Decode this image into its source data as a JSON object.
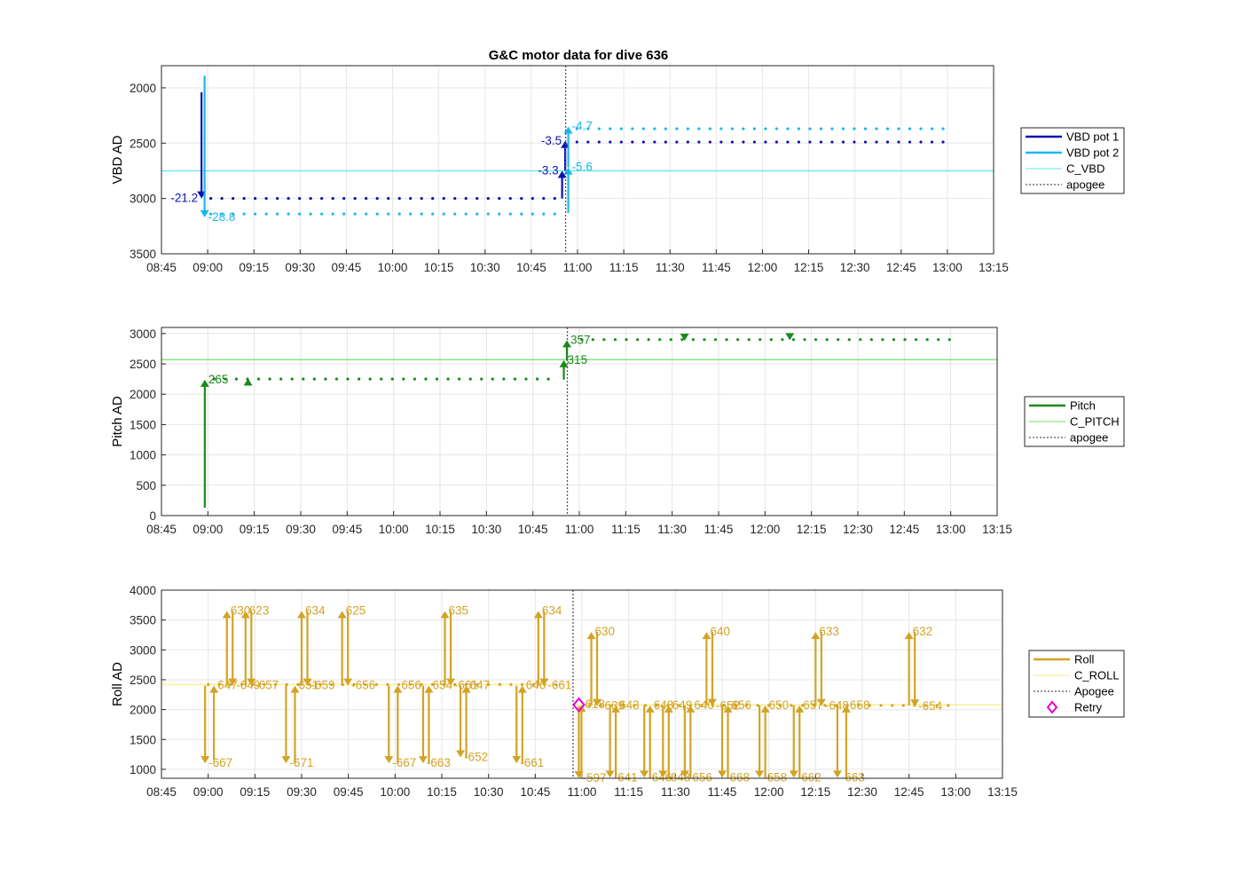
{
  "figure_title": "G&C motor data for dive 636",
  "colors": {
    "vbd1": "#0c12b0",
    "vbd2": "#1ab8ea",
    "c_vbd": "#62e4ea",
    "pitch": "#1b8a1b",
    "c_pitch": "#6de26d",
    "roll": "#d3a325",
    "c_roll": "#f7ec80",
    "apogee": "#555555",
    "retry": "#e100d6",
    "grid": "#e6e6e6"
  },
  "x_ticks": [
    "08:45",
    "09:00",
    "09:15",
    "09:30",
    "09:45",
    "10:00",
    "10:15",
    "10:30",
    "10:45",
    "11:00",
    "11:15",
    "11:30",
    "11:45",
    "12:00",
    "12:15",
    "12:30",
    "12:45",
    "13:00",
    "13:15"
  ],
  "chart_data": [
    {
      "type": "scatter",
      "ylabel": "VBD AD",
      "xlim": [
        "08:45",
        "13:15"
      ],
      "ylim": [
        3500,
        1800
      ],
      "y_reversed": true,
      "yticks": [
        2000,
        2500,
        3000,
        3500
      ],
      "grid": true,
      "legend_position": "right",
      "legend": [
        "VBD pot 1",
        "VBD pot 2",
        "C_VBD",
        "apogee"
      ],
      "apogee_time": "10:56",
      "constant_lines": [
        {
          "name": "C_VBD",
          "y": 2750
        }
      ],
      "series": [
        {
          "name": "VBD pot 1",
          "y": 2490,
          "samples_start": "08:59",
          "samples_end": "13:01",
          "pre_apogee_level": 3000,
          "post_apogee_level": 2490
        },
        {
          "name": "VBD pot 2",
          "samples_start": "08:59",
          "samples_end": "13:01",
          "pre_apogee_level": 3140,
          "post_apogee_level": 2370
        }
      ],
      "moves": [
        {
          "series": "VBD pot 1",
          "time": "08:58",
          "from": 2040,
          "to": 3000,
          "label": "-21.2"
        },
        {
          "series": "VBD pot 2",
          "time": "08:59",
          "from": 1890,
          "to": 3170,
          "label": "-28.8"
        },
        {
          "series": "VBD pot 1",
          "time": "10:55",
          "from": 3000,
          "to": 2750,
          "label": "-3.3"
        },
        {
          "series": "VBD pot 1",
          "time": "10:56",
          "from": 2750,
          "to": 2480,
          "label": "-3.5"
        },
        {
          "series": "VBD pot 2",
          "time": "10:57",
          "from": 3130,
          "to": 2720,
          "label": "-5.6"
        },
        {
          "series": "VBD pot 2",
          "time": "10:57",
          "from": 2720,
          "to": 2350,
          "label": "-4.7"
        }
      ]
    },
    {
      "type": "scatter",
      "ylabel": "Pitch AD",
      "xlim": [
        "08:45",
        "13:15"
      ],
      "ylim": [
        0,
        3100
      ],
      "yticks": [
        0,
        500,
        1000,
        1500,
        2000,
        2500,
        3000
      ],
      "grid": true,
      "legend_position": "right",
      "legend": [
        "Pitch",
        "C_PITCH",
        "apogee"
      ],
      "apogee_time": "10:56",
      "constant_lines": [
        {
          "name": "C_PITCH",
          "y": 2570
        }
      ],
      "series": [
        {
          "name": "Pitch",
          "samples_start": "09:00",
          "samples_end": "13:00",
          "pre_apogee_level": 2250,
          "post_apogee_level": 2900
        }
      ],
      "moves": [
        {
          "time": "08:59",
          "from": 130,
          "to": 2240,
          "label": "265",
          "direction": "up"
        },
        {
          "time": "09:13",
          "from": 2240,
          "to": 2260,
          "label": "",
          "direction": "up"
        },
        {
          "time": "10:55",
          "from": 2240,
          "to": 2560,
          "label": "315",
          "direction": "up"
        },
        {
          "time": "10:56",
          "from": 2560,
          "to": 2890,
          "label": "357",
          "direction": "up"
        },
        {
          "time": "11:34",
          "from": 2900,
          "to": 2880,
          "label": "",
          "direction": "down"
        },
        {
          "time": "12:08",
          "from": 2910,
          "to": 2890,
          "label": "",
          "direction": "down"
        }
      ]
    },
    {
      "type": "scatter",
      "ylabel": "Roll AD",
      "xlim": [
        "08:45",
        "13:15"
      ],
      "ylim": [
        850,
        4000
      ],
      "yticks": [
        1000,
        1500,
        2000,
        2500,
        3000,
        3500,
        4000
      ],
      "grid": true,
      "legend_position": "right",
      "legend": [
        "Roll",
        "C_ROLL",
        "Apogee",
        "Retry"
      ],
      "apogee_time": "10:57",
      "constant_lines": [
        {
          "name": "C_ROLL",
          "y_pre": 2420,
          "y_post": 2080
        }
      ],
      "retry": [
        {
          "time": "10:59",
          "y": 2080
        }
      ],
      "series": [
        {
          "name": "Roll",
          "samples_start": "08:58",
          "samples_end": "13:01",
          "pre_apogee_level": 2420,
          "post_apogee_level": 2070
        }
      ],
      "moves": [
        {
          "time": "08:59",
          "from": 2400,
          "to": 1100,
          "label": "-667"
        },
        {
          "time": "09:01",
          "from": 1150,
          "to": 2400,
          "label": "647"
        },
        {
          "time": "09:06",
          "from": 2400,
          "to": 3650,
          "label": "630"
        },
        {
          "time": "09:07",
          "from": 3650,
          "to": 2400,
          "label": "-649"
        },
        {
          "time": "09:12",
          "from": 2400,
          "to": 3650,
          "label": "623"
        },
        {
          "time": "09:13",
          "from": 3650,
          "to": 2400,
          "label": "-657"
        },
        {
          "time": "09:25",
          "from": 2400,
          "to": 1100,
          "label": "-671"
        },
        {
          "time": "09:27",
          "from": 1100,
          "to": 2400,
          "label": "651"
        },
        {
          "time": "09:30",
          "from": 2400,
          "to": 3650,
          "label": "634"
        },
        {
          "time": "09:31",
          "from": 3650,
          "to": 2400,
          "label": "-659"
        },
        {
          "time": "09:43",
          "from": 2400,
          "to": 3650,
          "label": "625"
        },
        {
          "time": "09:44",
          "from": 3650,
          "to": 2400,
          "label": "-656"
        },
        {
          "time": "09:58",
          "from": 2400,
          "to": 1100,
          "label": "-667"
        },
        {
          "time": "10:00",
          "from": 1100,
          "to": 2400,
          "label": "656"
        },
        {
          "time": "10:09",
          "from": 2400,
          "to": 1100,
          "label": "-663"
        },
        {
          "time": "10:10",
          "from": 1100,
          "to": 2400,
          "label": "654"
        },
        {
          "time": "10:16",
          "from": 2400,
          "to": 3650,
          "label": "635"
        },
        {
          "time": "10:17",
          "from": 3650,
          "to": 2400,
          "label": "-661"
        },
        {
          "time": "10:21",
          "from": 2400,
          "to": 1200,
          "label": "-652"
        },
        {
          "time": "10:22",
          "from": 1200,
          "to": 2400,
          "label": "647"
        },
        {
          "time": "10:39",
          "from": 2400,
          "to": 1100,
          "label": "-661"
        },
        {
          "time": "10:40",
          "from": 1100,
          "to": 2400,
          "label": "646"
        },
        {
          "time": "10:46",
          "from": 2400,
          "to": 3650,
          "label": "634"
        },
        {
          "time": "10:47",
          "from": 3650,
          "to": 2400,
          "label": "-661"
        },
        {
          "time": "10:59",
          "from": 2060,
          "to": 850,
          "label": "-597"
        },
        {
          "time": "10:59",
          "from": 850,
          "to": 2080,
          "label": "618"
        },
        {
          "time": "11:03",
          "from": 2080,
          "to": 3300,
          "label": "630"
        },
        {
          "time": "11:04",
          "from": 3300,
          "to": 2060,
          "label": "-639"
        },
        {
          "time": "11:09",
          "from": 2070,
          "to": 860,
          "label": "-641"
        },
        {
          "time": "11:10",
          "from": 860,
          "to": 2070,
          "label": "643"
        },
        {
          "time": "11:20",
          "from": 2070,
          "to": 860,
          "label": "-646"
        },
        {
          "time": "11:21",
          "from": 860,
          "to": 2070,
          "label": "648"
        },
        {
          "time": "11:26",
          "from": 2070,
          "to": 860,
          "label": "-648"
        },
        {
          "time": "11:27",
          "from": 860,
          "to": 2070,
          "label": "649"
        },
        {
          "time": "11:33",
          "from": 2070,
          "to": 860,
          "label": "-656"
        },
        {
          "time": "11:34",
          "from": 860,
          "to": 2070,
          "label": "640"
        },
        {
          "time": "11:40",
          "from": 2070,
          "to": 3300,
          "label": "640"
        },
        {
          "time": "11:41",
          "from": 3300,
          "to": 2060,
          "label": "-652"
        },
        {
          "time": "11:45",
          "from": 2070,
          "to": 860,
          "label": "-668"
        },
        {
          "time": "11:46",
          "from": 860,
          "to": 2070,
          "label": "656"
        },
        {
          "time": "11:57",
          "from": 2070,
          "to": 860,
          "label": "-658"
        },
        {
          "time": "11:58",
          "from": 860,
          "to": 2070,
          "label": "650"
        },
        {
          "time": "12:08",
          "from": 2070,
          "to": 860,
          "label": "-662"
        },
        {
          "time": "12:09",
          "from": 860,
          "to": 2070,
          "label": "657"
        },
        {
          "time": "12:15",
          "from": 2070,
          "to": 3300,
          "label": "633"
        },
        {
          "time": "12:16",
          "from": 3300,
          "to": 2060,
          "label": "-648"
        },
        {
          "time": "12:22",
          "from": 2070,
          "to": 860,
          "label": "-663"
        },
        {
          "time": "12:24",
          "from": 860,
          "to": 2070,
          "label": "658"
        },
        {
          "time": "12:45",
          "from": 2070,
          "to": 3300,
          "label": "632"
        },
        {
          "time": "12:46",
          "from": 3300,
          "to": 2050,
          "label": "-654"
        }
      ]
    }
  ]
}
